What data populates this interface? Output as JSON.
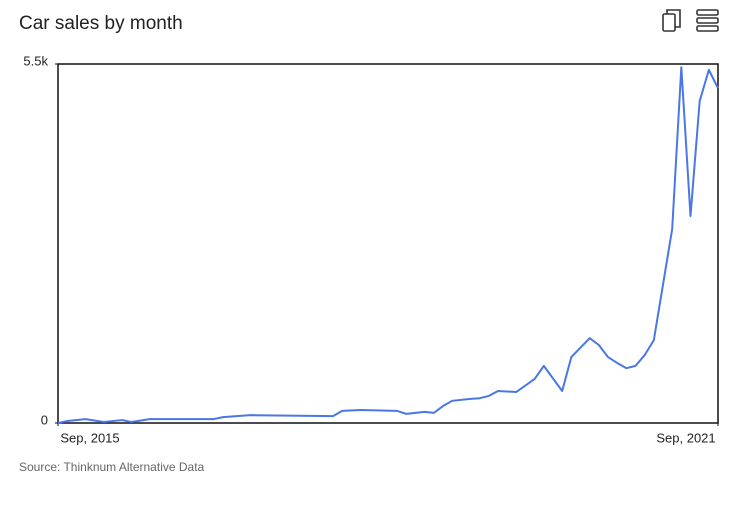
{
  "chart_data": {
    "type": "line",
    "title": "Car sales by month",
    "source": "Source: Thinknum Alternative Data",
    "x": [
      "2015-09",
      "2015-10",
      "2015-12",
      "2016-02",
      "2016-04",
      "2016-05",
      "2016-07",
      "2017-02",
      "2017-03",
      "2017-06",
      "2018-03",
      "2018-04",
      "2018-06",
      "2018-10",
      "2018-11",
      "2019-01",
      "2019-02",
      "2019-03",
      "2019-04",
      "2019-06",
      "2019-07",
      "2019-08",
      "2019-09",
      "2019-11",
      "2020-01",
      "2020-02",
      "2020-04",
      "2020-05",
      "2020-07",
      "2020-08",
      "2020-09",
      "2020-10",
      "2020-11",
      "2020-12",
      "2021-01",
      "2021-02",
      "2021-04",
      "2021-05",
      "2021-06",
      "2021-07",
      "2021-08",
      "2021-09"
    ],
    "values": [
      0,
      30,
      60,
      15,
      45,
      15,
      60,
      60,
      90,
      120,
      105,
      185,
      200,
      185,
      140,
      170,
      155,
      260,
      340,
      370,
      380,
      415,
      490,
      475,
      675,
      875,
      490,
      1010,
      1300,
      1195,
      1010,
      920,
      840,
      875,
      1040,
      1270,
      2970,
      5450,
      3170,
      4930,
      5410,
      5130
    ],
    "color": "#4a76e8",
    "xlim": [
      "2015-09",
      "2021-09"
    ],
    "xticks": [
      {
        "value": "2015-09",
        "label": "Sep, 2015"
      },
      {
        "value": "2021-09",
        "label": "Sep, 2021"
      }
    ],
    "ylim": [
      0,
      5500
    ],
    "yticks": [
      0,
      {
        "value": 5500,
        "label": "5.5k"
      }
    ]
  }
}
